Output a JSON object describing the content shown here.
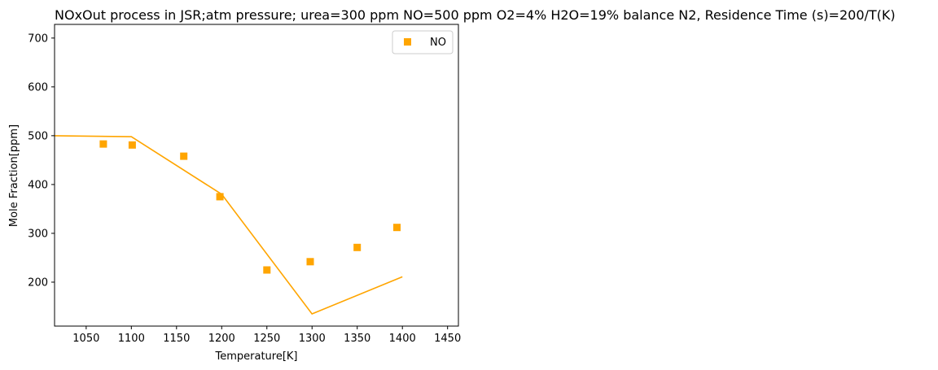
{
  "chart_data": {
    "type": "scatter",
    "title": "NOxOut process in JSR;atm pressure; urea=300 ppm NO=500 ppm O2=4% H2O=19%  balance N2, Residence Time (s)=200/T(K)",
    "xlabel": "Temperature[K]",
    "ylabel": "Mole Fraction[ppm]",
    "xlim": [
      1015,
      1462
    ],
    "ylim": [
      110,
      728
    ],
    "xticks": [
      1050,
      1100,
      1150,
      1200,
      1250,
      1300,
      1350,
      1400,
      1450
    ],
    "yticks": [
      200,
      300,
      400,
      500,
      600,
      700
    ],
    "grid": false,
    "legend_position": "top-right",
    "color": "#FFA500",
    "series": [
      {
        "name": "NO",
        "kind": "markers",
        "marker": "square",
        "x": [
          1069,
          1101,
          1158,
          1198,
          1250,
          1298,
          1350,
          1394
        ],
        "y": [
          483,
          481,
          458,
          375,
          225,
          242,
          271,
          312
        ]
      },
      {
        "kind": "line",
        "x": [
          1015,
          1100,
          1200,
          1300,
          1400
        ],
        "y": [
          500,
          498,
          380,
          135,
          211
        ]
      }
    ]
  }
}
